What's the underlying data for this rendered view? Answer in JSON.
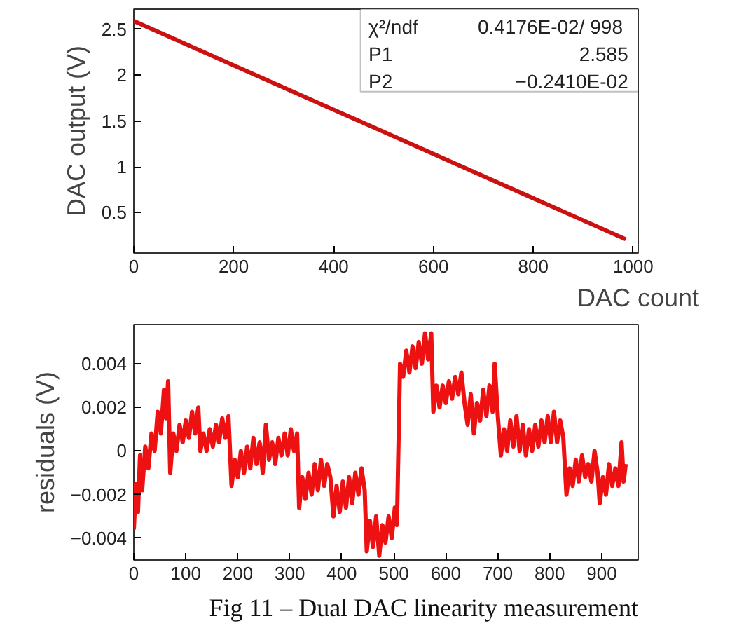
{
  "chart_data": [
    {
      "type": "line",
      "xlabel": "DAC count",
      "ylabel": "DAC output (V)",
      "x": [
        0,
        985
      ],
      "series": [
        {
          "color": "#cc1111",
          "values": [
            2.59,
            0.21
          ]
        }
      ],
      "xlim": [
        0,
        1010
      ],
      "ylim": [
        0.06,
        2.72
      ],
      "xticks": [
        0,
        200,
        400,
        600,
        800,
        1000
      ],
      "yticks": [
        0.5,
        1,
        1.5,
        2,
        2.5
      ],
      "grid": false,
      "annotations": [
        "χ²/ndf",
        "0.4176E-02/  998",
        "P1",
        "2.585",
        "P2",
        "−0.2410E-02"
      ]
    },
    {
      "type": "line",
      "ylabel": "residuals (V)",
      "x": [
        0,
        4,
        8,
        12,
        16,
        22,
        28,
        34,
        40,
        46,
        52,
        58,
        62,
        66,
        70,
        76,
        82,
        88,
        94,
        100,
        106,
        112,
        118,
        124,
        128,
        134,
        140,
        146,
        152,
        158,
        164,
        170,
        176,
        182,
        188,
        194,
        200,
        206,
        212,
        218,
        224,
        230,
        236,
        242,
        248,
        254,
        260,
        266,
        272,
        278,
        284,
        290,
        296,
        302,
        308,
        314,
        318,
        324,
        330,
        336,
        342,
        348,
        354,
        360,
        366,
        372,
        378,
        384,
        390,
        396,
        402,
        408,
        414,
        420,
        426,
        432,
        438,
        444,
        448,
        454,
        460,
        466,
        472,
        478,
        484,
        490,
        496,
        502,
        506,
        512,
        518,
        524,
        530,
        536,
        542,
        548,
        554,
        560,
        566,
        572,
        576,
        582,
        588,
        594,
        600,
        606,
        612,
        618,
        624,
        630,
        636,
        642,
        648,
        654,
        660,
        666,
        672,
        678,
        684,
        690,
        694,
        700,
        706,
        712,
        718,
        724,
        730,
        736,
        742,
        748,
        754,
        760,
        766,
        772,
        778,
        784,
        790,
        796,
        802,
        808,
        814,
        820,
        826,
        832,
        838,
        844,
        850,
        856,
        862,
        868,
        874,
        880,
        886,
        892,
        896,
        902,
        908,
        914,
        920,
        926,
        932,
        938,
        942,
        946
      ],
      "series": [
        {
          "color": "#ee1111",
          "values": [
            -0.0036,
            -0.0015,
            -0.0028,
            -0.0002,
            -0.0018,
            0.0002,
            -0.0008,
            0.0008,
            0.0,
            0.0018,
            0.0008,
            0.0028,
            0.0015,
            0.0032,
            -0.001,
            0.0008,
            0.0,
            0.0012,
            0.0004,
            0.0014,
            0.0006,
            0.0018,
            0.0008,
            0.002,
            0.0,
            0.0008,
            0.0,
            0.001,
            0.0002,
            0.0012,
            0.0004,
            0.0015,
            0.0006,
            0.0016,
            -0.0016,
            -0.0004,
            -0.0012,
            0.0,
            -0.001,
            0.0002,
            -0.0008,
            0.0006,
            -0.0006,
            0.0004,
            -0.001,
            0.0012,
            -0.0004,
            0.0004,
            -0.0006,
            0.0006,
            -0.0002,
            0.0008,
            -0.0002,
            0.001,
            0.0,
            0.0008,
            -0.0026,
            -0.0012,
            -0.0022,
            -0.001,
            -0.002,
            -0.0006,
            -0.0018,
            -0.0004,
            -0.0016,
            -0.0006,
            -0.0012,
            -0.003,
            -0.0016,
            -0.0028,
            -0.0014,
            -0.0026,
            -0.0012,
            -0.0024,
            -0.001,
            -0.002,
            -0.0008,
            -0.0018,
            -0.0046,
            -0.0032,
            -0.0044,
            -0.003,
            -0.0048,
            -0.0034,
            -0.0042,
            -0.003,
            -0.004,
            -0.0026,
            -0.0034,
            0.004,
            0.0034,
            0.0046,
            0.0036,
            0.0048,
            0.0038,
            0.005,
            0.004,
            0.0054,
            0.0042,
            0.0054,
            0.0018,
            0.003,
            0.002,
            0.003,
            0.0022,
            0.0032,
            0.0024,
            0.0034,
            0.0026,
            0.0036,
            0.0022,
            0.0012,
            0.0026,
            0.0008,
            0.0022,
            0.0014,
            0.0028,
            0.0016,
            0.003,
            0.0018,
            0.004,
            0.0016,
            -0.0002,
            0.001,
            0.0,
            0.0014,
            0.0002,
            0.0016,
            0.0,
            0.0012,
            -0.0002,
            0.001,
            0.0,
            0.0012,
            0.0002,
            0.0014,
            0.0004,
            0.0016,
            0.0004,
            0.0018,
            0.0004,
            0.0014,
            0.0006,
            -0.002,
            -0.0008,
            -0.0016,
            -0.0004,
            -0.0014,
            -0.0002,
            -0.0012,
            -0.0006,
            -0.0014,
            0.0,
            -0.001,
            -0.0024,
            -0.0012,
            -0.002,
            -0.0006,
            -0.0016,
            -0.0008,
            -0.0016,
            0.0004,
            -0.0014,
            -0.0006
          ]
        }
      ],
      "xlim": [
        0,
        970
      ],
      "ylim": [
        -0.005,
        0.0058
      ],
      "xticks": [
        0,
        100,
        200,
        300,
        400,
        500,
        600,
        700,
        800,
        900
      ],
      "yticks": [
        {
          "value": -0.004,
          "label": "−0.004"
        },
        {
          "value": -0.002,
          "label": "−0.002"
        },
        0,
        0.002,
        0.004
      ],
      "grid": false,
      "annotations": [
        "Fig 11 – Dual DAC linearity measurement"
      ]
    }
  ]
}
